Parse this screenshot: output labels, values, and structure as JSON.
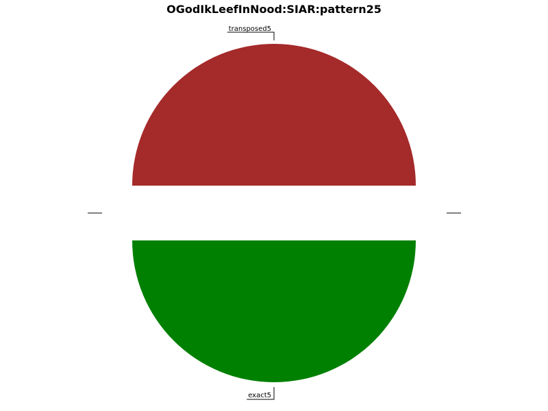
{
  "chart_data": {
    "type": "pie",
    "title": "OGodIkLeefInNood:SIAR:pattern25",
    "categories": [
      "transposed5",
      "exact5"
    ],
    "values": [
      50,
      50
    ],
    "colors": [
      "#a52a2a",
      "#008000"
    ],
    "exploded": true,
    "legend": "none"
  }
}
